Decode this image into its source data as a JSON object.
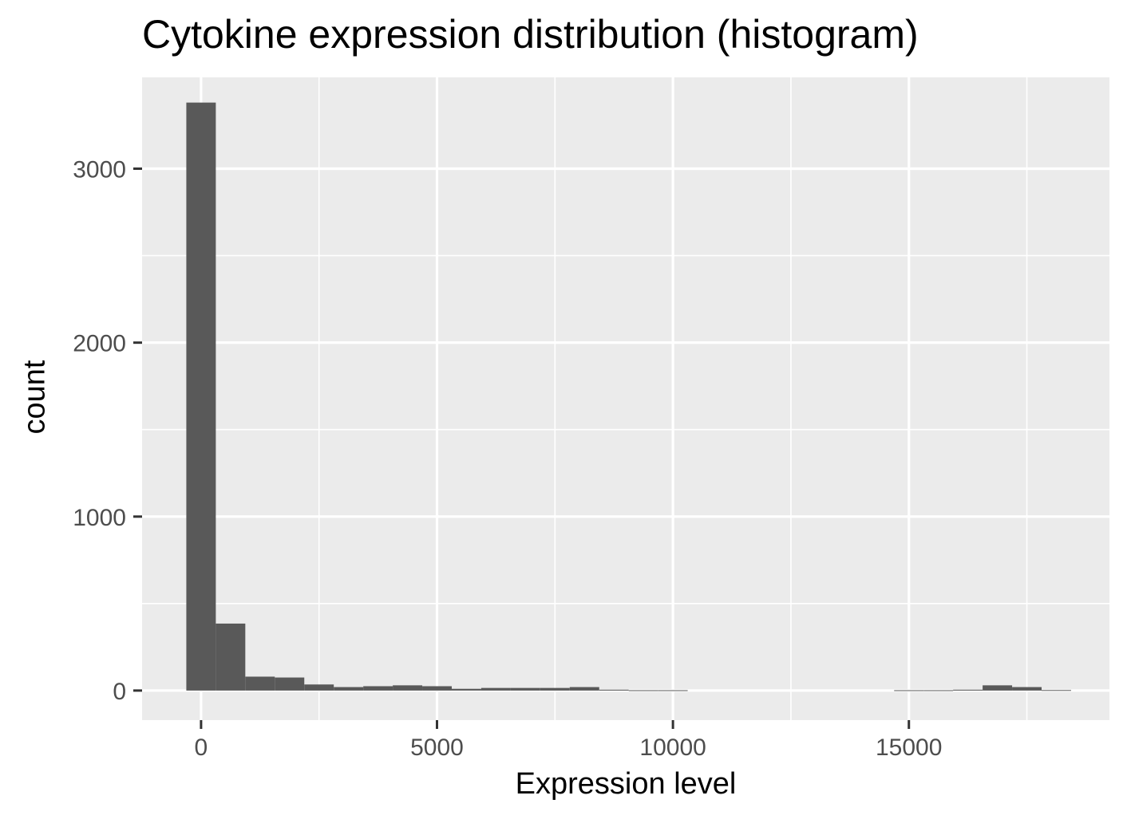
{
  "chart_data": {
    "type": "bar",
    "title": "Cytokine expression distribution (histogram)",
    "xlabel": "Expression level",
    "ylabel": "count",
    "xlim": [
      -1250,
      19250
    ],
    "ylim": [
      -170,
      3525
    ],
    "x_ticks": [
      0,
      5000,
      10000,
      15000
    ],
    "x_tick_labels": [
      "0",
      "5000",
      "10000",
      "15000"
    ],
    "y_ticks": [
      0,
      1000,
      2000,
      3000
    ],
    "y_tick_labels": [
      "0",
      "1000",
      "2000",
      "3000"
    ],
    "x_minor_ticks": [
      2500,
      7500,
      12500,
      17500
    ],
    "y_minor_ticks": [
      500,
      1500,
      2500
    ],
    "grid": true,
    "legend": "none",
    "bar_color": "#595959",
    "panel_color": "#EBEBEB",
    "grid_color": "#FFFFFF",
    "bin_width": 625,
    "bin_centers": [
      0,
      625,
      1250,
      1875,
      2500,
      3125,
      3750,
      4375,
      5000,
      5625,
      6250,
      6875,
      7500,
      8125,
      8750,
      9375,
      10000,
      10625,
      11250,
      11875,
      12500,
      13125,
      13750,
      14375,
      15000,
      15625,
      16250,
      16875,
      17500,
      18125
    ],
    "values": [
      3380,
      385,
      80,
      75,
      35,
      20,
      25,
      30,
      25,
      10,
      15,
      15,
      15,
      20,
      5,
      2,
      2,
      0,
      0,
      0,
      0,
      0,
      0,
      0,
      2,
      2,
      5,
      30,
      20,
      3
    ]
  }
}
